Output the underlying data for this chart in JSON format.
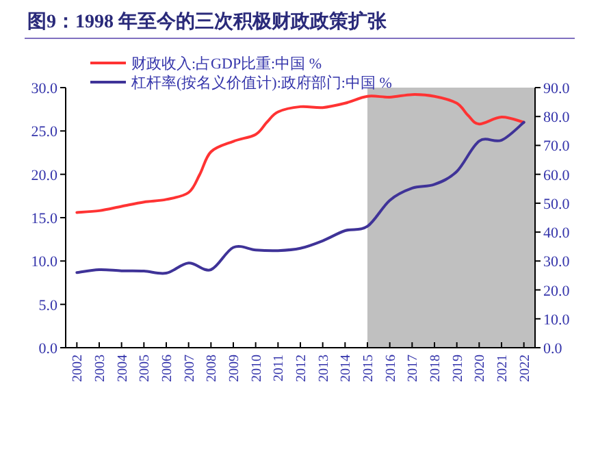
{
  "chart_data": {
    "type": "line",
    "title": "图9：1998 年至今的三次积极财政政策扩张",
    "xlim": [
      2001.5,
      2022.5
    ],
    "xticks": [
      2002,
      2003,
      2004,
      2005,
      2006,
      2007,
      2008,
      2009,
      2010,
      2011,
      2012,
      2013,
      2014,
      2015,
      2016,
      2017,
      2018,
      2019,
      2020,
      2021,
      2022
    ],
    "ylim": [
      0,
      30
    ],
    "yticks": [
      {
        "value": 0,
        "label": "0.0"
      },
      {
        "value": 5,
        "label": "5.0"
      },
      {
        "value": 10,
        "label": "10.0"
      },
      {
        "value": 15,
        "label": "15.0"
      },
      {
        "value": 20,
        "label": "20.0"
      },
      {
        "value": 25,
        "label": "25.0"
      },
      {
        "value": 30,
        "label": "30.0"
      }
    ],
    "y2lim": [
      0,
      90
    ],
    "y2ticks": [
      {
        "value": 0,
        "label": "0.0"
      },
      {
        "value": 10,
        "label": "10.0"
      },
      {
        "value": 20,
        "label": "20.0"
      },
      {
        "value": 30,
        "label": "30.0"
      },
      {
        "value": 40,
        "label": "40.0"
      },
      {
        "value": 50,
        "label": "50.0"
      },
      {
        "value": 60,
        "label": "60.0"
      },
      {
        "value": 70,
        "label": "70.0"
      },
      {
        "value": 80,
        "label": "80.0"
      },
      {
        "value": 90,
        "label": "90.0"
      }
    ],
    "series": [
      {
        "name": "财政收入:占GDP比重:中国 %",
        "color": "#ff3333",
        "x": [
          2002,
          2003,
          2004,
          2005,
          2006,
          2007,
          2007.5,
          2008,
          2009,
          2010,
          2010.5,
          2011,
          2012,
          2013,
          2014,
          2015,
          2016,
          2017,
          2018,
          2019,
          2019.5,
          2020,
          2021,
          2022
        ],
        "values": [
          15.6,
          15.8,
          16.3,
          16.8,
          17.1,
          17.9,
          20,
          22.6,
          23.8,
          24.6,
          26,
          27.2,
          27.8,
          27.7,
          28.2,
          29.0,
          28.9,
          29.2,
          29.0,
          28.2,
          26.8,
          25.8,
          26.6,
          26.0
        ]
      },
      {
        "name": "杠杆率(按名义价值计):政府部门:中国 %",
        "color": "#3f3398",
        "axis": "y2",
        "x": [
          2002,
          2003,
          2004,
          2005,
          2006,
          2007,
          2008,
          2009,
          2010,
          2011,
          2012,
          2013,
          2014,
          2015,
          2016,
          2017,
          2018,
          2019,
          2020,
          2021,
          2022
        ],
        "values": [
          26.0,
          27.0,
          26.6,
          26.5,
          25.8,
          29.3,
          27.0,
          34.7,
          33.8,
          33.6,
          34.4,
          37.0,
          40.5,
          42.0,
          51.0,
          55.2,
          56.5,
          61.0,
          71.5,
          71.8,
          78.0
        ]
      }
    ],
    "bands": [
      {
        "axis": "x",
        "from": 2015,
        "to": 2022.5,
        "color": "#c0c0c0"
      }
    ],
    "legend": "top left",
    "grid": false
  }
}
